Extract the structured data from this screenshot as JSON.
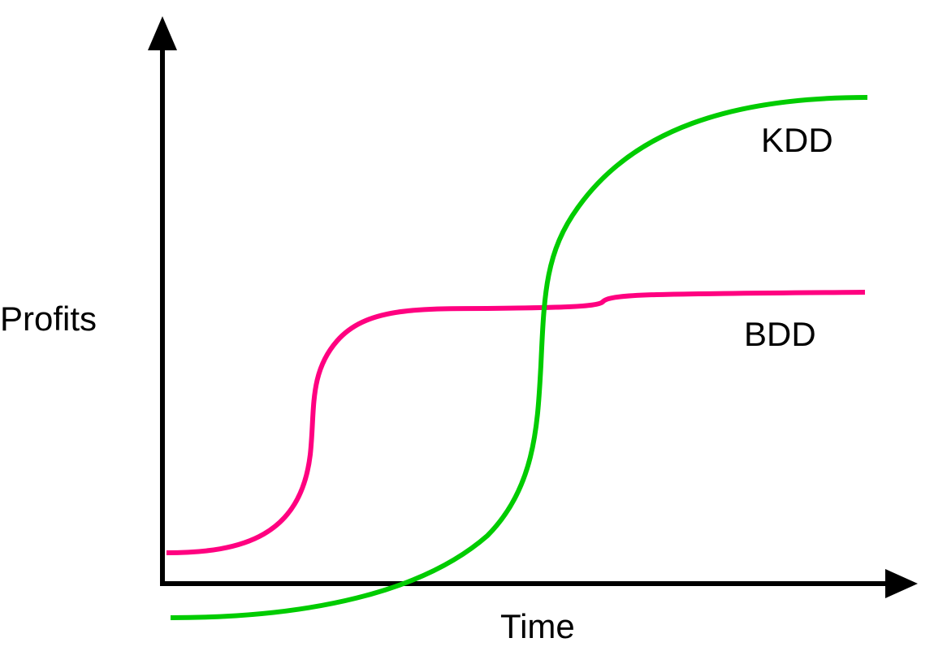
{
  "chart_data": {
    "type": "line",
    "title": "",
    "xlabel": "Time",
    "ylabel": "Profits",
    "grid": false,
    "series": [
      {
        "name": "KDD",
        "color": "#00CC00",
        "shape": "late steep S-curve: starts below the Time axis, rises sharply mid-way, plateaus highest"
      },
      {
        "name": "BDD",
        "color": "#FF0080",
        "shape": "early S-curve: starts just above the Time axis, rises early, plateaus at a moderate level"
      }
    ]
  },
  "colors": {
    "axis": "#000000",
    "kdd": "#00CC00",
    "bdd": "#FF0080",
    "background": "#FFFFFF"
  }
}
